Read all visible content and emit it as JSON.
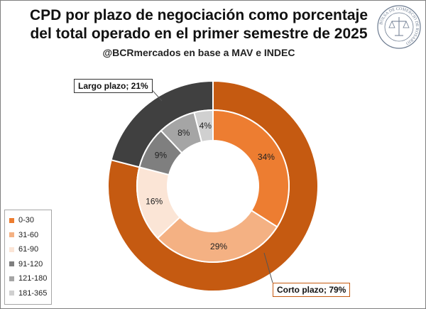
{
  "header": {
    "title_line1": "CPD por plazo de negociación como porcentaje",
    "title_line2": "del total operado en el primer semestre de 2025",
    "subtitle": "@BCRmercados en base a MAV e INDEC"
  },
  "logo": {
    "text": "BOLSA DE COMERCIO DE ROSARIO"
  },
  "colors": {
    "outer_corto": "#c55a11",
    "outer_largo": "#404040",
    "inner": [
      "#ed7d31",
      "#f4b183",
      "#fbe5d6",
      "#7f7f7f",
      "#a5a5a5",
      "#d0d0d0"
    ]
  },
  "chart_data": {
    "type": "pie",
    "subtype": "donut-nested",
    "series": [
      {
        "ring": "inner",
        "categories": [
          "0-30",
          "31-60",
          "61-90",
          "91-120",
          "121-180",
          "181-365"
        ],
        "values": [
          34,
          29,
          16,
          9,
          8,
          4
        ],
        "labels": [
          "34%",
          "29%",
          "16%",
          "9%",
          "8%",
          "4%"
        ]
      },
      {
        "ring": "outer",
        "categories": [
          "Corto plazo",
          "Largo plazo"
        ],
        "values": [
          79,
          21
        ],
        "labels": [
          "Corto plazo; 79%",
          "Largo plazo; 21%"
        ]
      }
    ],
    "legend": {
      "position": "bottom-left",
      "entries": [
        "0-30",
        "31-60",
        "61-90",
        "91-120",
        "121-180",
        "181-365"
      ]
    }
  }
}
